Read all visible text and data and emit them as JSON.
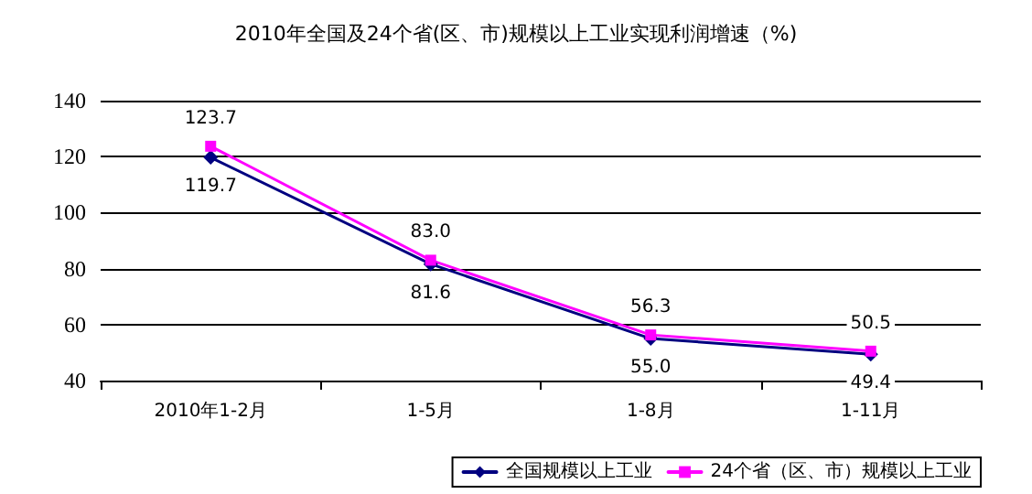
{
  "chart_data": {
    "type": "line",
    "title": "2010年全国及24个省(区、市)规模以上工业实现利润增速（%)",
    "categories": [
      "2010年1-2月",
      "1-5月",
      "1-8月",
      "1-11月"
    ],
    "series": [
      {
        "name": "全国规模以上工业",
        "color": "#000080",
        "values": [
          119.7,
          81.6,
          55.0,
          49.4
        ],
        "value_labels": [
          "119.7",
          "81.6",
          "55.0",
          "49.4"
        ],
        "marker": "diamond"
      },
      {
        "name": "24个省（区、市）规模以上工业",
        "color": "#ff00ff",
        "values": [
          123.7,
          83.0,
          56.3,
          50.5
        ],
        "value_labels": [
          "123.7",
          "83.0",
          "56.3",
          "50.5"
        ],
        "marker": "square"
      }
    ],
    "ylim": [
      40,
      140
    ],
    "yticks": [
      40,
      60,
      80,
      100,
      120,
      140
    ],
    "grid": "y",
    "legend": "bottom right"
  }
}
